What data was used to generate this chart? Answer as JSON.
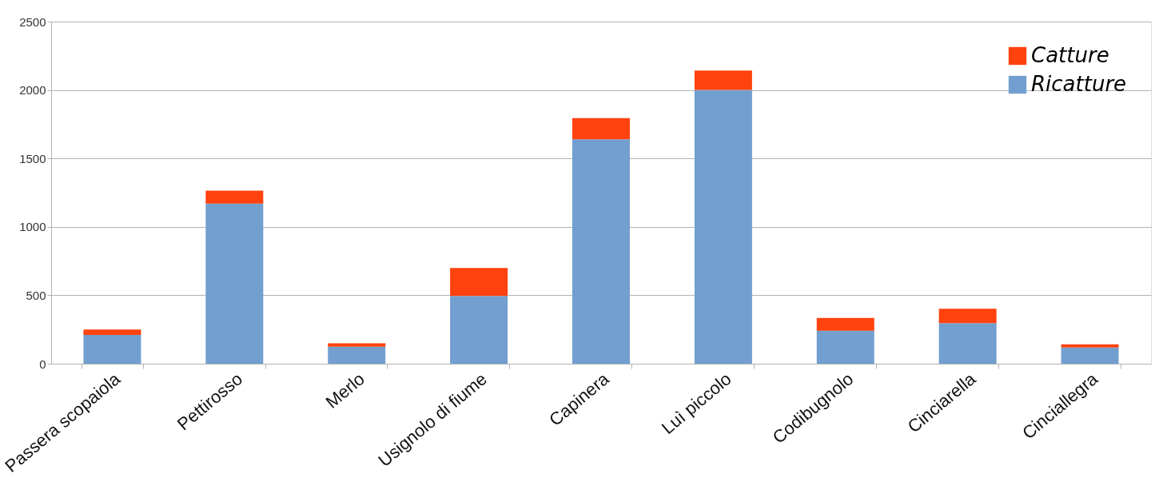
{
  "chart_data": {
    "type": "bar",
    "stacked": true,
    "categories": [
      "Passera scopaiola",
      "Pettirosso",
      "Merlo",
      "Usignolo di fiume",
      "Capinera",
      "Luì piccolo",
      "Codibugnolo",
      "Cinciarella",
      "Cinciallegra"
    ],
    "series": [
      {
        "name": "Ricatture",
        "color": "#729fcf",
        "values": [
          210,
          1170,
          124,
          495,
          1640,
          2000,
          241,
          297,
          118
        ]
      },
      {
        "name": "Catture",
        "color": "#ff420e",
        "values": [
          40,
          95,
          25,
          205,
          155,
          142,
          93,
          105,
          24
        ]
      }
    ],
    "ylim": [
      0,
      2500
    ],
    "yticks": [
      0,
      500,
      1000,
      1500,
      2000,
      2500
    ],
    "grid": "y",
    "legend": "top right"
  }
}
